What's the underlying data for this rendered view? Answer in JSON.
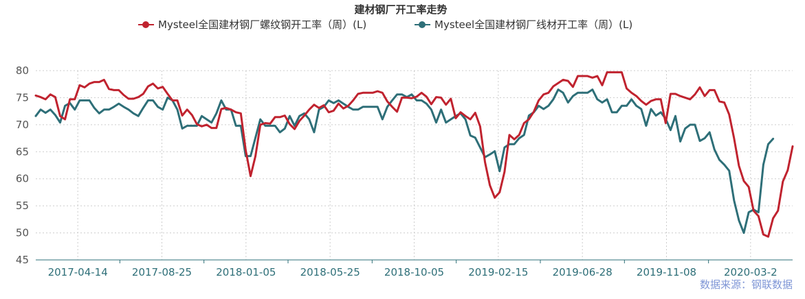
{
  "chart_data": {
    "type": "line",
    "title": "建材钢厂开工率走势",
    "source": "数据来源：钢联数据",
    "ylim": [
      45,
      80
    ],
    "yticks": [
      45,
      50,
      55,
      60,
      65,
      70,
      75,
      80
    ],
    "xticks": [
      "2017-04-14",
      "2017-08-25",
      "2018-01-05",
      "2018-05-25",
      "2018-10-05",
      "2019-02-15",
      "2019-06-28",
      "2019-11-08",
      "2020-03-2"
    ],
    "grid": true,
    "legend_position": "top-center",
    "series": [
      {
        "name": "Mysteel全国建材钢厂螺纹钢开工率（周）(L)",
        "color": "#c0232f",
        "values": [
          75.4,
          75.1,
          74.7,
          75.6,
          75.1,
          71.6,
          71.0,
          74.7,
          74.7,
          77.3,
          76.9,
          77.6,
          77.9,
          77.9,
          78.3,
          76.6,
          76.4,
          76.4,
          75.5,
          74.8,
          74.8,
          75.1,
          75.7,
          77.1,
          77.6,
          76.7,
          77.0,
          75.7,
          74.5,
          74.5,
          71.7,
          72.8,
          71.8,
          70.1,
          69.7,
          70.0,
          69.4,
          69.4,
          72.9,
          73.1,
          72.8,
          72.3,
          72.1,
          65.3,
          60.5,
          64.2,
          70.0,
          70.3,
          70.2,
          71.4,
          71.4,
          71.7,
          70.1,
          69.2,
          70.7,
          71.7,
          72.8,
          73.7,
          73.1,
          73.6,
          72.3,
          72.6,
          73.9,
          73.0,
          73.5,
          74.5,
          75.7,
          75.9,
          75.9,
          75.9,
          76.2,
          75.9,
          74.3,
          73.3,
          72.4,
          75.0,
          75.0,
          74.9,
          75.2,
          75.9,
          75.2,
          73.8,
          75.1,
          75.0,
          73.7,
          74.8,
          71.2,
          72.3,
          71.6,
          71.0,
          72.2,
          69.7,
          63.1,
          58.8,
          56.5,
          57.5,
          61.3,
          68.1,
          67.3,
          68.1,
          70.3,
          71.0,
          72.4,
          74.5,
          75.6,
          75.9,
          77.1,
          77.7,
          78.3,
          78.1,
          77.0,
          79.0,
          79.0,
          79.0,
          78.7,
          79.0,
          77.3,
          79.7,
          79.7,
          79.7,
          79.7,
          76.7,
          75.9,
          75.3,
          74.4,
          73.7,
          74.4,
          74.7,
          74.7,
          70.3,
          75.7,
          75.7,
          75.3,
          75.0,
          74.7,
          75.6,
          76.9,
          75.3,
          76.4,
          76.4,
          74.3,
          74.1,
          71.9,
          67.5,
          62.4,
          59.6,
          58.5,
          54.1,
          53.1,
          49.7,
          49.3,
          52.7,
          54.1,
          59.5,
          61.6,
          66.0
        ]
      },
      {
        "name": "Mysteel全国建材钢厂线材开工率（周）(L)",
        "color": "#2e6f78",
        "values": [
          71.6,
          72.8,
          72.2,
          72.8,
          71.8,
          70.4,
          73.5,
          74.0,
          72.8,
          74.5,
          74.5,
          74.5,
          73.1,
          72.1,
          72.8,
          72.8,
          73.3,
          73.9,
          73.3,
          72.8,
          72.1,
          71.6,
          73.1,
          74.5,
          74.5,
          73.3,
          72.8,
          75.0,
          74.5,
          72.8,
          69.3,
          69.8,
          69.8,
          69.8,
          71.6,
          71.0,
          70.4,
          72.1,
          74.5,
          72.8,
          72.8,
          69.8,
          69.8,
          64.2,
          64.2,
          67.6,
          71.0,
          69.8,
          69.8,
          69.8,
          68.6,
          69.3,
          71.6,
          69.8,
          71.6,
          72.1,
          71.0,
          68.6,
          72.8,
          73.3,
          74.5,
          74.0,
          74.5,
          73.9,
          73.3,
          72.8,
          72.8,
          73.3,
          73.3,
          73.3,
          73.3,
          71.0,
          73.3,
          74.5,
          75.6,
          75.6,
          75.1,
          75.6,
          74.5,
          74.5,
          73.9,
          72.8,
          70.4,
          72.8,
          70.4,
          71.0,
          71.6,
          72.1,
          71.0,
          68.0,
          67.6,
          65.8,
          64.0,
          64.5,
          65.1,
          61.4,
          65.8,
          66.4,
          66.4,
          67.5,
          68.1,
          71.7,
          72.3,
          73.5,
          72.9,
          73.5,
          74.7,
          76.5,
          75.9,
          74.1,
          75.3,
          75.9,
          75.9,
          75.9,
          76.5,
          74.7,
          74.1,
          74.7,
          72.3,
          72.3,
          73.5,
          73.5,
          74.7,
          73.5,
          72.9,
          69.8,
          72.9,
          71.7,
          72.3,
          71.1,
          69.0,
          71.6,
          66.9,
          69.3,
          70.0,
          70.0,
          67.0,
          67.5,
          68.6,
          65.4,
          63.5,
          62.6,
          61.5,
          56.0,
          52.3,
          50.0,
          53.8,
          54.3,
          53.8,
          62.6,
          66.4,
          67.4
        ]
      }
    ]
  }
}
